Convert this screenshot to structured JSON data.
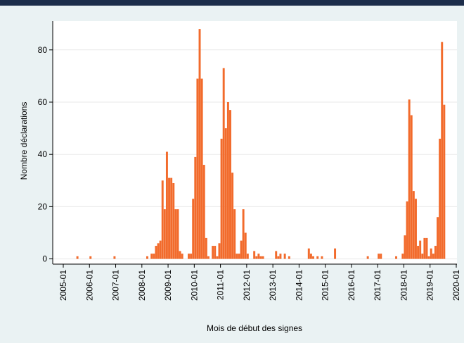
{
  "chart_data": {
    "type": "bar",
    "x_label": "Mois de début des signes",
    "y_label": "Nombre déclarations",
    "color": "#f26b2c",
    "grid": true,
    "xlim": [
      "2005-01",
      "2020-01"
    ],
    "xticks": [
      "2005-01",
      "2006-01",
      "2007-01",
      "2008-01",
      "2009-01",
      "2010-01",
      "2011-01",
      "2012-01",
      "2013-01",
      "2014-01",
      "2015-01",
      "2016-01",
      "2017-01",
      "2018-01",
      "2019-01",
      "2020-01"
    ],
    "ylim": [
      -2,
      91
    ],
    "yticks": [
      0,
      20,
      40,
      60,
      80
    ],
    "x": [
      "2005-07",
      "2006-01",
      "2006-12",
      "2008-03",
      "2008-05",
      "2008-06",
      "2008-07",
      "2008-08",
      "2008-09",
      "2008-10",
      "2008-11",
      "2008-12",
      "2009-01",
      "2009-02",
      "2009-03",
      "2009-04",
      "2009-05",
      "2009-06",
      "2009-07",
      "2009-10",
      "2009-11",
      "2009-12",
      "2010-01",
      "2010-02",
      "2010-03",
      "2010-04",
      "2010-05",
      "2010-06",
      "2010-07",
      "2010-09",
      "2010-10",
      "2010-11",
      "2010-12",
      "2011-01",
      "2011-02",
      "2011-03",
      "2011-04",
      "2011-05",
      "2011-06",
      "2011-07",
      "2011-08",
      "2011-09",
      "2011-10",
      "2011-11",
      "2011-12",
      "2012-01",
      "2012-04",
      "2012-05",
      "2012-06",
      "2012-07",
      "2012-08",
      "2013-02",
      "2013-03",
      "2013-04",
      "2013-06",
      "2013-08",
      "2014-05",
      "2014-06",
      "2014-07",
      "2014-09",
      "2014-11",
      "2015-05",
      "2016-08",
      "2017-01",
      "2017-02",
      "2017-09",
      "2017-12",
      "2018-01",
      "2018-02",
      "2018-03",
      "2018-04",
      "2018-05",
      "2018-06",
      "2018-07",
      "2018-08",
      "2018-09",
      "2018-10",
      "2018-11",
      "2018-12",
      "2019-01",
      "2019-02",
      "2019-03",
      "2019-04",
      "2019-05",
      "2019-06",
      "2019-07"
    ],
    "values": [
      1,
      1,
      1,
      1,
      2,
      2,
      5,
      6,
      7,
      30,
      19,
      41,
      31,
      31,
      29,
      19,
      19,
      3,
      2,
      2,
      2,
      23,
      39,
      69,
      88,
      69,
      36,
      8,
      1,
      5,
      5,
      1,
      6,
      46,
      73,
      50,
      60,
      57,
      33,
      19,
      2,
      2,
      7,
      19,
      10,
      2,
      3,
      1,
      2,
      1,
      1,
      3,
      1,
      2,
      2,
      1,
      4,
      2,
      1,
      1,
      1,
      4,
      1,
      2,
      2,
      1,
      2,
      9,
      22,
      61,
      55,
      26,
      23,
      5,
      7,
      2,
      8,
      8,
      1,
      4,
      2,
      5,
      16,
      46,
      83,
      59
    ]
  }
}
